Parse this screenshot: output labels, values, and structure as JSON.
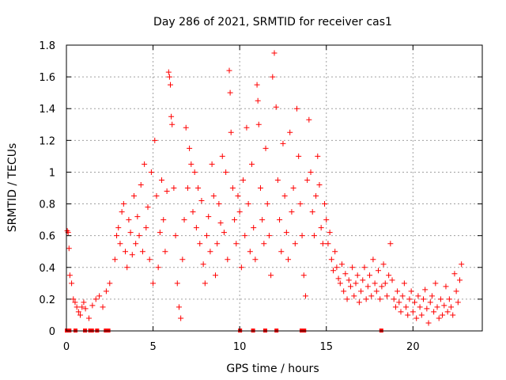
{
  "chart_data": {
    "type": "scatter",
    "title": "Day 286 of 2021, SRMTID for receiver cas1",
    "xlabel": "GPS time / hours",
    "ylabel": "SRMTID / TECUs",
    "xlim": [
      0,
      24
    ],
    "ylim": [
      0,
      1.8
    ],
    "xticks": [
      0,
      5,
      10,
      15,
      20
    ],
    "xtick_labels": [
      "0",
      "5",
      "10",
      "15",
      "20"
    ],
    "yticks": [
      0,
      0.2,
      0.4,
      0.6,
      0.8,
      1.0,
      1.2,
      1.4,
      1.6,
      1.8
    ],
    "ytick_labels": [
      "0",
      "0.2",
      "0.4",
      "0.6",
      "0.8",
      "1",
      "1.2",
      "1.4",
      "1.6",
      "1.8"
    ],
    "grid": true,
    "marker": "+",
    "color": "#ff0000",
    "series": [
      {
        "name": "SRMTID",
        "points": [
          [
            0.05,
            0.63
          ],
          [
            0.1,
            0.62
          ],
          [
            0.15,
            0.52
          ],
          [
            0.2,
            0.35
          ],
          [
            0.3,
            0.3
          ],
          [
            0.4,
            0.2
          ],
          [
            0.5,
            0.18
          ],
          [
            0.6,
            0.15
          ],
          [
            0.7,
            0.12
          ],
          [
            0.8,
            0.1
          ],
          [
            0.9,
            0.15
          ],
          [
            1.0,
            0.18
          ],
          [
            1.1,
            0.14
          ],
          [
            1.3,
            0.08
          ],
          [
            1.5,
            0.16
          ],
          [
            1.7,
            0.2
          ],
          [
            1.9,
            0.22
          ],
          [
            2.1,
            0.15
          ],
          [
            2.3,
            0.25
          ],
          [
            2.5,
            0.3
          ],
          [
            2.8,
            0.45
          ],
          [
            2.9,
            0.6
          ],
          [
            3.0,
            0.65
          ],
          [
            3.1,
            0.55
          ],
          [
            3.2,
            0.75
          ],
          [
            3.3,
            0.8
          ],
          [
            3.4,
            0.5
          ],
          [
            3.5,
            0.4
          ],
          [
            3.6,
            0.7
          ],
          [
            3.7,
            0.62
          ],
          [
            3.8,
            0.48
          ],
          [
            3.9,
            0.85
          ],
          [
            4.0,
            0.55
          ],
          [
            4.1,
            0.72
          ],
          [
            4.2,
            0.6
          ],
          [
            4.3,
            0.92
          ],
          [
            4.4,
            0.5
          ],
          [
            4.5,
            1.05
          ],
          [
            4.6,
            0.65
          ],
          [
            4.7,
            0.78
          ],
          [
            4.8,
            0.45
          ],
          [
            4.9,
            1.0
          ],
          [
            5.0,
            0.3
          ],
          [
            5.1,
            1.2
          ],
          [
            5.2,
            0.85
          ],
          [
            5.3,
            0.4
          ],
          [
            5.4,
            0.62
          ],
          [
            5.5,
            0.95
          ],
          [
            5.6,
            0.7
          ],
          [
            5.7,
            0.5
          ],
          [
            5.8,
            0.88
          ],
          [
            5.9,
            1.63
          ],
          [
            5.95,
            1.6
          ],
          [
            6.0,
            1.55
          ],
          [
            6.05,
            1.35
          ],
          [
            6.1,
            1.3
          ],
          [
            6.2,
            0.9
          ],
          [
            6.3,
            0.6
          ],
          [
            6.4,
            0.3
          ],
          [
            6.5,
            0.15
          ],
          [
            6.6,
            0.08
          ],
          [
            6.7,
            0.45
          ],
          [
            6.8,
            0.7
          ],
          [
            6.9,
            1.28
          ],
          [
            7.0,
            0.9
          ],
          [
            7.1,
            1.15
          ],
          [
            7.2,
            1.05
          ],
          [
            7.3,
            0.75
          ],
          [
            7.4,
            1.0
          ],
          [
            7.5,
            0.65
          ],
          [
            7.6,
            0.9
          ],
          [
            7.7,
            0.55
          ],
          [
            7.8,
            0.82
          ],
          [
            7.9,
            0.42
          ],
          [
            8.0,
            0.3
          ],
          [
            8.1,
            0.6
          ],
          [
            8.2,
            0.72
          ],
          [
            8.3,
            0.5
          ],
          [
            8.4,
            1.05
          ],
          [
            8.5,
            0.85
          ],
          [
            8.6,
            0.35
          ],
          [
            8.7,
            0.55
          ],
          [
            8.8,
            0.8
          ],
          [
            8.9,
            0.68
          ],
          [
            9.0,
            1.1
          ],
          [
            9.1,
            0.62
          ],
          [
            9.2,
            1.0
          ],
          [
            9.3,
            0.45
          ],
          [
            9.4,
            1.64
          ],
          [
            9.45,
            1.5
          ],
          [
            9.5,
            1.25
          ],
          [
            9.6,
            0.9
          ],
          [
            9.7,
            0.7
          ],
          [
            9.8,
            0.55
          ],
          [
            9.9,
            0.85
          ],
          [
            10.0,
            0.75
          ],
          [
            10.1,
            0.4
          ],
          [
            10.2,
            0.95
          ],
          [
            10.3,
            0.6
          ],
          [
            10.4,
            1.28
          ],
          [
            10.5,
            0.8
          ],
          [
            10.6,
            0.5
          ],
          [
            10.7,
            1.05
          ],
          [
            10.8,
            0.65
          ],
          [
            10.9,
            0.45
          ],
          [
            11.0,
            1.55
          ],
          [
            11.05,
            1.45
          ],
          [
            11.1,
            1.3
          ],
          [
            11.2,
            0.9
          ],
          [
            11.3,
            0.7
          ],
          [
            11.4,
            0.55
          ],
          [
            11.5,
            1.15
          ],
          [
            11.6,
            0.8
          ],
          [
            11.7,
            0.6
          ],
          [
            11.8,
            0.35
          ],
          [
            11.9,
            1.6
          ],
          [
            12.0,
            1.75
          ],
          [
            12.1,
            1.41
          ],
          [
            12.2,
            0.95
          ],
          [
            12.3,
            0.7
          ],
          [
            12.4,
            0.5
          ],
          [
            12.5,
            1.18
          ],
          [
            12.6,
            0.85
          ],
          [
            12.7,
            0.62
          ],
          [
            12.8,
            0.45
          ],
          [
            12.9,
            1.25
          ],
          [
            13.0,
            0.75
          ],
          [
            13.1,
            0.9
          ],
          [
            13.2,
            0.55
          ],
          [
            13.3,
            1.4
          ],
          [
            13.4,
            1.1
          ],
          [
            13.5,
            0.8
          ],
          [
            13.6,
            0.6
          ],
          [
            13.7,
            0.35
          ],
          [
            13.8,
            0.22
          ],
          [
            13.9,
            0.95
          ],
          [
            14.0,
            1.33
          ],
          [
            14.1,
            1.0
          ],
          [
            14.2,
            0.75
          ],
          [
            14.3,
            0.6
          ],
          [
            14.4,
            0.85
          ],
          [
            14.5,
            1.1
          ],
          [
            14.6,
            0.92
          ],
          [
            14.7,
            0.65
          ],
          [
            14.8,
            0.55
          ],
          [
            14.9,
            0.8
          ],
          [
            15.0,
            0.7
          ],
          [
            15.1,
            0.55
          ],
          [
            15.2,
            0.62
          ],
          [
            15.3,
            0.45
          ],
          [
            15.4,
            0.38
          ],
          [
            15.5,
            0.5
          ],
          [
            15.6,
            0.4
          ],
          [
            15.7,
            0.33
          ],
          [
            15.8,
            0.3
          ],
          [
            15.9,
            0.42
          ],
          [
            16.0,
            0.25
          ],
          [
            16.1,
            0.36
          ],
          [
            16.2,
            0.2
          ],
          [
            16.3,
            0.32
          ],
          [
            16.4,
            0.28
          ],
          [
            16.5,
            0.4
          ],
          [
            16.6,
            0.22
          ],
          [
            16.7,
            0.3
          ],
          [
            16.8,
            0.35
          ],
          [
            16.9,
            0.18
          ],
          [
            17.0,
            0.25
          ],
          [
            17.1,
            0.32
          ],
          [
            17.2,
            0.4
          ],
          [
            17.3,
            0.2
          ],
          [
            17.4,
            0.28
          ],
          [
            17.5,
            0.35
          ],
          [
            17.6,
            0.22
          ],
          [
            17.7,
            0.45
          ],
          [
            17.8,
            0.3
          ],
          [
            17.9,
            0.25
          ],
          [
            18.0,
            0.38
          ],
          [
            18.1,
            0.2
          ],
          [
            18.2,
            0.28
          ],
          [
            18.3,
            0.42
          ],
          [
            18.4,
            0.3
          ],
          [
            18.5,
            0.22
          ],
          [
            18.6,
            0.35
          ],
          [
            18.7,
            0.55
          ],
          [
            18.8,
            0.32
          ],
          [
            18.9,
            0.2
          ],
          [
            19.0,
            0.15
          ],
          [
            19.1,
            0.25
          ],
          [
            19.2,
            0.18
          ],
          [
            19.3,
            0.12
          ],
          [
            19.4,
            0.22
          ],
          [
            19.5,
            0.3
          ],
          [
            19.6,
            0.15
          ],
          [
            19.7,
            0.1
          ],
          [
            19.8,
            0.2
          ],
          [
            19.9,
            0.25
          ],
          [
            20.0,
            0.12
          ],
          [
            20.1,
            0.18
          ],
          [
            20.2,
            0.08
          ],
          [
            20.3,
            0.22
          ],
          [
            20.4,
            0.15
          ],
          [
            20.5,
            0.1
          ],
          [
            20.6,
            0.2
          ],
          [
            20.7,
            0.26
          ],
          [
            20.8,
            0.14
          ],
          [
            20.9,
            0.05
          ],
          [
            21.0,
            0.18
          ],
          [
            21.1,
            0.22
          ],
          [
            21.2,
            0.12
          ],
          [
            21.3,
            0.3
          ],
          [
            21.4,
            0.15
          ],
          [
            21.5,
            0.08
          ],
          [
            21.6,
            0.2
          ],
          [
            21.7,
            0.1
          ],
          [
            21.8,
            0.16
          ],
          [
            21.9,
            0.28
          ],
          [
            22.0,
            0.12
          ],
          [
            22.1,
            0.2
          ],
          [
            22.2,
            0.15
          ],
          [
            22.3,
            0.1
          ],
          [
            22.4,
            0.36
          ],
          [
            22.5,
            0.25
          ],
          [
            22.6,
            0.18
          ],
          [
            22.7,
            0.32
          ],
          [
            22.8,
            0.42
          ]
        ]
      }
    ],
    "gap_markers": {
      "y": 0,
      "x": [
        0.0,
        0.15,
        0.5,
        1.05,
        1.35,
        1.45,
        1.75,
        2.25,
        2.4,
        10.0,
        10.75,
        11.45,
        12.1,
        13.55,
        13.7,
        18.15
      ]
    }
  }
}
